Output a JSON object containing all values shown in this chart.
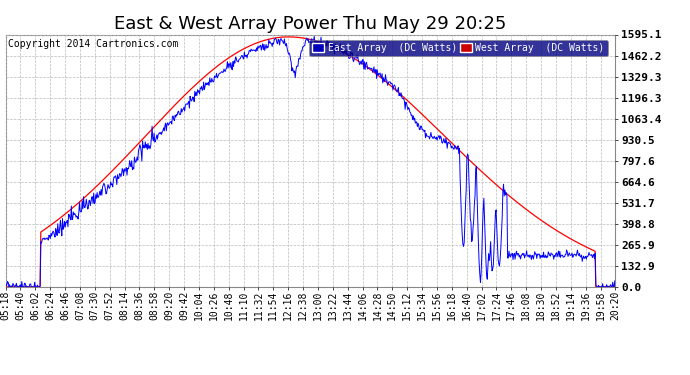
{
  "title": "East & West Array Power Thu May 29 20:25",
  "copyright": "Copyright 2014 Cartronics.com",
  "legend_east": "East Array  (DC Watts)",
  "legend_west": "West Array  (DC Watts)",
  "east_color": "#0000ff",
  "west_color": "#ff0000",
  "plot_bg_color": "#ffffff",
  "fig_bg_color": "#ffffff",
  "ymax": 1595.1,
  "ymin": 0.0,
  "yticks": [
    0.0,
    132.9,
    265.9,
    398.8,
    531.7,
    664.6,
    797.6,
    930.5,
    1063.4,
    1196.3,
    1329.3,
    1462.2,
    1595.1
  ],
  "xtick_labels": [
    "05:18",
    "05:40",
    "06:02",
    "06:24",
    "06:46",
    "07:08",
    "07:30",
    "07:52",
    "08:14",
    "08:36",
    "08:58",
    "09:20",
    "09:42",
    "10:04",
    "10:26",
    "10:48",
    "11:10",
    "11:32",
    "11:54",
    "12:16",
    "12:38",
    "13:00",
    "13:22",
    "13:44",
    "14:06",
    "14:28",
    "14:50",
    "15:12",
    "15:34",
    "15:56",
    "16:18",
    "16:40",
    "17:02",
    "17:24",
    "17:46",
    "18:08",
    "18:30",
    "18:52",
    "19:14",
    "19:36",
    "19:58",
    "20:20"
  ],
  "grid_color": "#bbbbbb",
  "title_fontsize": 13,
  "tick_fontsize": 7,
  "copyright_fontsize": 7
}
